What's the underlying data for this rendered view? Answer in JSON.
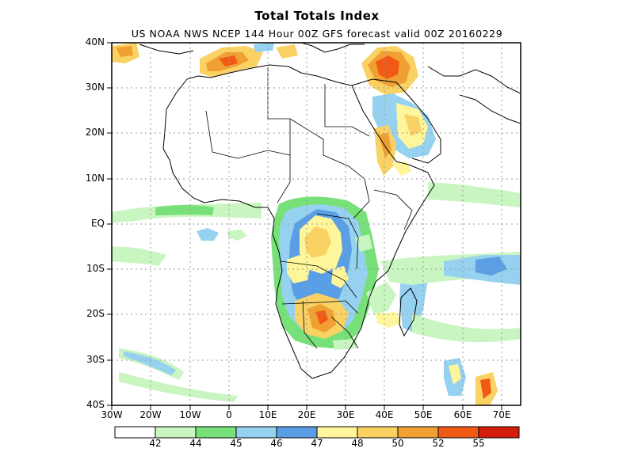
{
  "map": {
    "title": "Total Totals Index",
    "subtitle": "US NOAA NWS NCEP 144 Hour 00Z GFS forecast valid 00Z 20160229",
    "lat_labels": [
      "40N",
      "30N",
      "20N",
      "10N",
      "EQ",
      "10S",
      "20S",
      "30S",
      "40S"
    ],
    "lon_labels": [
      "30W",
      "20W",
      "10W",
      "0",
      "10E",
      "20E",
      "30E",
      "40E",
      "50E",
      "60E",
      "70E"
    ]
  },
  "colorbar": {
    "colors": [
      "#ffffff",
      "#c8f5c0",
      "#78e078",
      "#96d2f0",
      "#5a9ee6",
      "#fff59a",
      "#fad264",
      "#f0a032",
      "#f05a14",
      "#d21e0a"
    ],
    "labels": [
      "42",
      "44",
      "45",
      "46",
      "47",
      "48",
      "50",
      "52",
      "55"
    ]
  }
}
